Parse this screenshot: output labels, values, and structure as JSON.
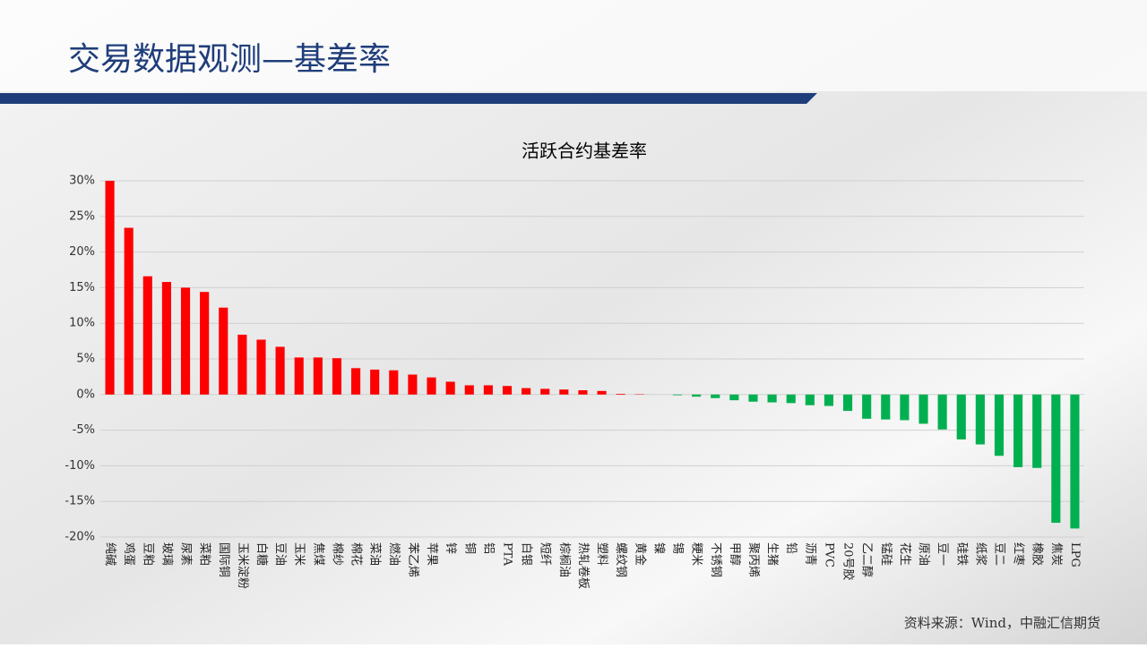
{
  "slide_title": "交易数据观测—基差率",
  "source": "资料来源：Wind，中融汇信期货",
  "chart_data": {
    "type": "bar",
    "title": "活跃合约基差率",
    "categories": [
      "纯碱",
      "鸡蛋",
      "豆粕",
      "玻璃",
      "尿素",
      "菜粕",
      "国际铜",
      "玉米淀粉",
      "白糖",
      "豆油",
      "玉米",
      "焦煤",
      "棉纱",
      "棉花",
      "菜油",
      "燃油",
      "苯乙烯",
      "苹果",
      "锌",
      "铜",
      "铝",
      "PTA",
      "白银",
      "短纤",
      "棕榈油",
      "热轧卷板",
      "塑料",
      "螺纹钢",
      "黄金",
      "镍",
      "锡",
      "粳米",
      "不锈钢",
      "甲醇",
      "聚丙烯",
      "生猪",
      "铅",
      "沥青",
      "PVC",
      "20号胶",
      "乙二醇",
      "锰硅",
      "花生",
      "原油",
      "豆一",
      "硅铁",
      "纸浆",
      "豆二",
      "红枣",
      "橡胶",
      "焦炭",
      "LPG"
    ],
    "values": [
      30,
      23.4,
      16.6,
      15.8,
      15.0,
      14.4,
      12.2,
      8.4,
      7.7,
      6.7,
      5.2,
      5.2,
      5.1,
      3.7,
      3.5,
      3.4,
      2.8,
      2.4,
      1.8,
      1.3,
      1.3,
      1.2,
      0.9,
      0.8,
      0.7,
      0.6,
      0.5,
      0.1,
      0.05,
      0,
      -0.1,
      -0.3,
      -0.5,
      -0.8,
      -1.0,
      -1.1,
      -1.2,
      -1.5,
      -1.6,
      -2.3,
      -3.4,
      -3.5,
      -3.6,
      -4.1,
      -4.9,
      -6.3,
      -7.0,
      -8.6,
      -10.2,
      -10.3,
      -18.0,
      -18.8
    ],
    "positive_color": "#ff0000",
    "negative_color": "#00b050",
    "ylim": [
      -20,
      30
    ],
    "yticks": [
      {
        "value": -20,
        "label": "-20%"
      },
      {
        "value": -15,
        "label": "-15%"
      },
      {
        "value": -10,
        "label": "-10%"
      },
      {
        "value": -5,
        "label": "-5%"
      },
      {
        "value": 0,
        "label": "0%"
      },
      {
        "value": 5,
        "label": "5%"
      },
      {
        "value": 10,
        "label": "10%"
      },
      {
        "value": 15,
        "label": "15%"
      },
      {
        "value": 20,
        "label": "20%"
      },
      {
        "value": 25,
        "label": "25%"
      },
      {
        "value": 30,
        "label": "30%"
      }
    ],
    "grid": true
  }
}
